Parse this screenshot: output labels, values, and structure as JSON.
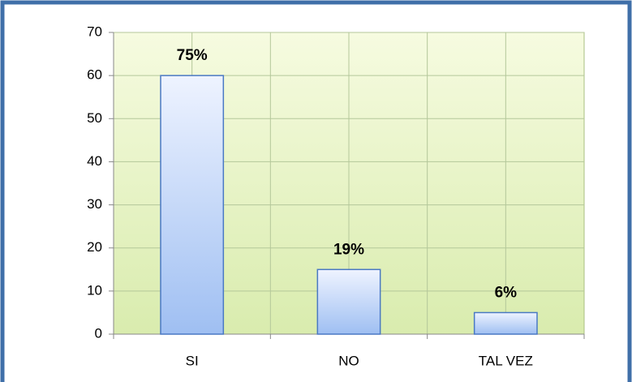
{
  "chart_data": {
    "type": "bar",
    "categories": [
      "SI",
      "NO",
      "TAL VEZ"
    ],
    "values": [
      60,
      15,
      5
    ],
    "value_labels": [
      "75%",
      "19%",
      "6%"
    ],
    "color": "#9fbff2",
    "ylim": [
      0,
      70
    ],
    "yticks": [
      0,
      10,
      20,
      30,
      40,
      50,
      60,
      70
    ],
    "grid": true
  }
}
